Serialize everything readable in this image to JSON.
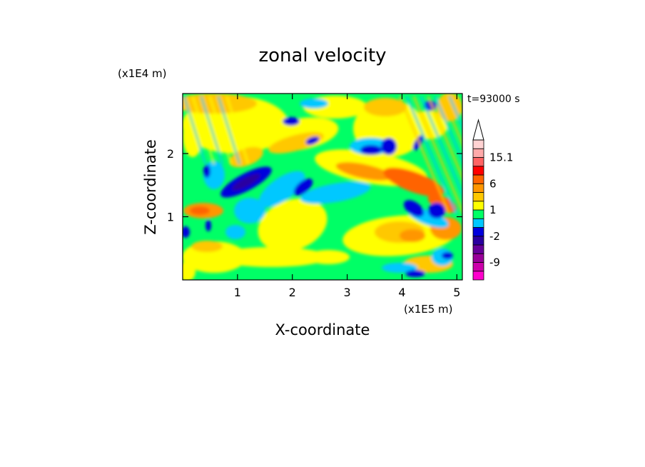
{
  "chart_data": {
    "type": "heatmap",
    "title": "zonal velocity",
    "time_label": "t=93000 s",
    "xlabel": "X-coordinate",
    "ylabel": "Z-coordinate",
    "x_scale_label": "(x1E5 m)",
    "y_scale_label": "(x1E4 m)",
    "xlim": [
      0,
      5.1
    ],
    "ylim": [
      0,
      2.95
    ],
    "x_ticks": [
      {
        "value": 1,
        "label": "1"
      },
      {
        "value": 2,
        "label": "2"
      },
      {
        "value": 3,
        "label": "3"
      },
      {
        "value": 4,
        "label": "4"
      },
      {
        "value": 5,
        "label": "5"
      }
    ],
    "y_ticks": [
      {
        "value": 1,
        "label": "1"
      },
      {
        "value": 2,
        "label": "2"
      }
    ],
    "colorbar": {
      "levels": [
        {
          "color": "#ff00cc"
        },
        {
          "color": "#cc00aa"
        },
        {
          "color": "#990099",
          "label": "-9"
        },
        {
          "color": "#660099"
        },
        {
          "color": "#2a00a0"
        },
        {
          "color": "#0000dd",
          "label": "-2"
        },
        {
          "color": "#00c8ff"
        },
        {
          "color": "#00ff66"
        },
        {
          "color": "#ffff00",
          "label": "1"
        },
        {
          "color": "#ffc800"
        },
        {
          "color": "#ff9600"
        },
        {
          "color": "#ff6400",
          "label": "6"
        },
        {
          "color": "#ff0000"
        },
        {
          "color": "#ff6464"
        },
        {
          "color": "#ffaaaa",
          "label": "15.1"
        },
        {
          "color": "#ffd2d2"
        }
      ],
      "top_arrow_color": "#ffffff"
    },
    "field_colors": {
      "green": "#00ff66",
      "yellow": "#ffff00",
      "orange": "#ffc800",
      "dark_orange": "#ff9600",
      "red_orange": "#ff6400",
      "cyan": "#00c8ff",
      "blue": "#0000dd",
      "navy": "#2a00a0"
    }
  }
}
